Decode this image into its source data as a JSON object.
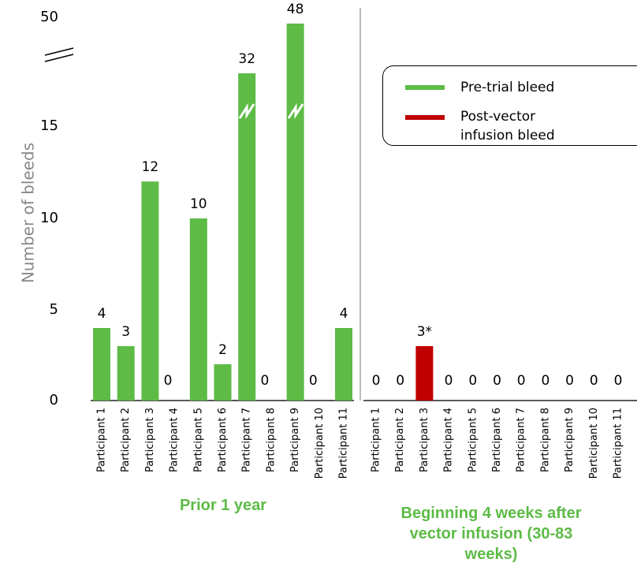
{
  "chart_data": [
    {
      "type": "bar",
      "ylabel": "Number of bleeds",
      "xlabel": "Prior 1 year",
      "name": "Pre-trial bleed",
      "color": "#5dbb46",
      "categories": [
        "Participant 1",
        "Participant 2",
        "Participant 3",
        "Participant 4",
        "Participant 5",
        "Participant 6",
        "Participant 7",
        "Participant 8",
        "Participant 9",
        "Participant 10",
        "Participant 11"
      ],
      "values": [
        4,
        3,
        12,
        0,
        10,
        2,
        32,
        0,
        48,
        0,
        4
      ],
      "ylim": [
        0,
        50
      ],
      "yticks": [
        0,
        5,
        10,
        15,
        50
      ]
    },
    {
      "type": "bar",
      "xlabel": "Beginning 4 weeks after vector infusion (30-83 weeks)",
      "name": "Post-vector infusion bleed",
      "color": "#c00000",
      "categories": [
        "Participant 1",
        "Participant 2",
        "Participant 3",
        "Participant 4",
        "Participant 5",
        "Participant 6",
        "Participant 7",
        "Participant 8",
        "Participant 9",
        "Participant 10",
        "Participant 11"
      ],
      "values": [
        0,
        0,
        3,
        0,
        0,
        0,
        0,
        0,
        0,
        0,
        0
      ],
      "value_labels": [
        "0",
        "0",
        "3*",
        "0",
        "0",
        "0",
        "0",
        "0",
        "0",
        "0",
        "0"
      ],
      "ylim": [
        0,
        50
      ],
      "yticks": [
        0,
        5,
        10,
        15,
        50
      ]
    }
  ]
}
